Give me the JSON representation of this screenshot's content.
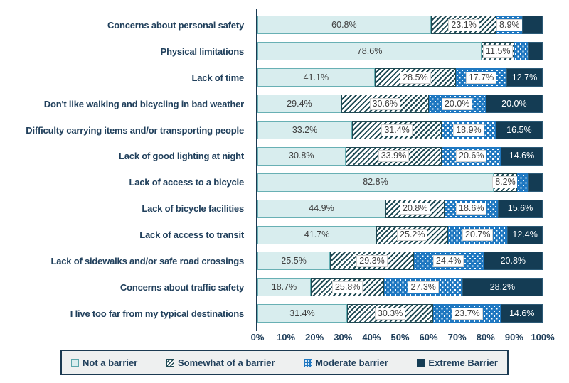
{
  "chart_data": {
    "type": "bar",
    "subtype": "horizontal-stacked",
    "title": "",
    "xlabel": "",
    "ylabel": "",
    "xlim": [
      0,
      100
    ],
    "grid": false,
    "legend_position": "bottom",
    "x_axis": {
      "ticks": [
        "0%",
        "10%",
        "20%",
        "30%",
        "40%",
        "50%",
        "60%",
        "70%",
        "80%",
        "90%",
        "100%"
      ]
    },
    "legend": [
      {
        "name": "Not a barrier",
        "style": "not"
      },
      {
        "name": "Somewhat of a barrier",
        "style": "some"
      },
      {
        "name": "Moderate barrier",
        "style": "mod"
      },
      {
        "name": "Extreme Barrier",
        "style": "ext"
      }
    ],
    "series_names": [
      "Not a barrier",
      "Somewhat of a barrier",
      "Moderate barrier",
      "Extreme Barrier"
    ],
    "rows": [
      {
        "category": "Concerns about personal safety",
        "values": [
          60.8,
          23.1,
          8.9,
          7.2
        ],
        "labels": [
          "60.8%",
          "23.1%",
          "8.9%",
          ""
        ]
      },
      {
        "category": "Physical limitations",
        "values": [
          78.6,
          11.5,
          4.9,
          5.0
        ],
        "labels": [
          "78.6%",
          "11.5%",
          "",
          ""
        ]
      },
      {
        "category": "Lack of time",
        "values": [
          41.1,
          28.5,
          17.7,
          12.7
        ],
        "labels": [
          "41.1%",
          "28.5%",
          "17.7%",
          "12.7%"
        ]
      },
      {
        "category": "Don't like walking and bicycling in bad weather",
        "values": [
          29.4,
          30.6,
          20.0,
          20.0
        ],
        "labels": [
          "29.4%",
          "30.6%",
          "20.0%",
          "20.0%"
        ]
      },
      {
        "category": "Difficulty carrying items and/or transporting people",
        "values": [
          33.2,
          31.4,
          18.9,
          16.5
        ],
        "labels": [
          "33.2%",
          "31.4%",
          "18.9%",
          "16.5%"
        ]
      },
      {
        "category": "Lack of good lighting at night",
        "values": [
          30.8,
          33.9,
          20.6,
          14.6
        ],
        "labels": [
          "30.8%",
          "33.9%",
          "20.6%",
          "14.6%"
        ]
      },
      {
        "category": "Lack of access to a bicycle",
        "values": [
          82.8,
          8.2,
          4.0,
          5.0
        ],
        "labels": [
          "82.8%",
          "8.2%",
          "",
          ""
        ]
      },
      {
        "category": "Lack of bicycle facilities",
        "values": [
          44.9,
          20.8,
          18.6,
          15.6
        ],
        "labels": [
          "44.9%",
          "20.8%",
          "18.6%",
          "15.6%"
        ]
      },
      {
        "category": "Lack of access to transit",
        "values": [
          41.7,
          25.2,
          20.7,
          12.4
        ],
        "labels": [
          "41.7%",
          "25.2%",
          "20.7%",
          "12.4%"
        ]
      },
      {
        "category": "Lack of sidewalks and/or safe road crossings",
        "values": [
          25.5,
          29.3,
          24.4,
          20.8
        ],
        "labels": [
          "25.5%",
          "29.3%",
          "24.4%",
          "20.8%"
        ]
      },
      {
        "category": "Concerns about traffic safety",
        "values": [
          18.7,
          25.8,
          27.3,
          28.2
        ],
        "labels": [
          "18.7%",
          "25.8%",
          "27.3%",
          "28.2%"
        ]
      },
      {
        "category": "I live too far from my typical destinations",
        "values": [
          31.4,
          30.3,
          23.7,
          14.6
        ],
        "labels": [
          "31.4%",
          "30.3%",
          "23.7%",
          "14.6%"
        ]
      }
    ],
    "colors": {
      "not_a_barrier_fill": "#d8edee",
      "not_a_barrier_border": "#68b0b4",
      "somewhat_hatch_stripe": "#1f4a54",
      "moderate_fill": "#1f78c1",
      "extreme_fill": "#143c54",
      "axis_line": "#1b3a52",
      "axis_text": "#21405c",
      "data_label_text": "#3f3f3f",
      "label_box_bg": "#ffffff"
    }
  }
}
